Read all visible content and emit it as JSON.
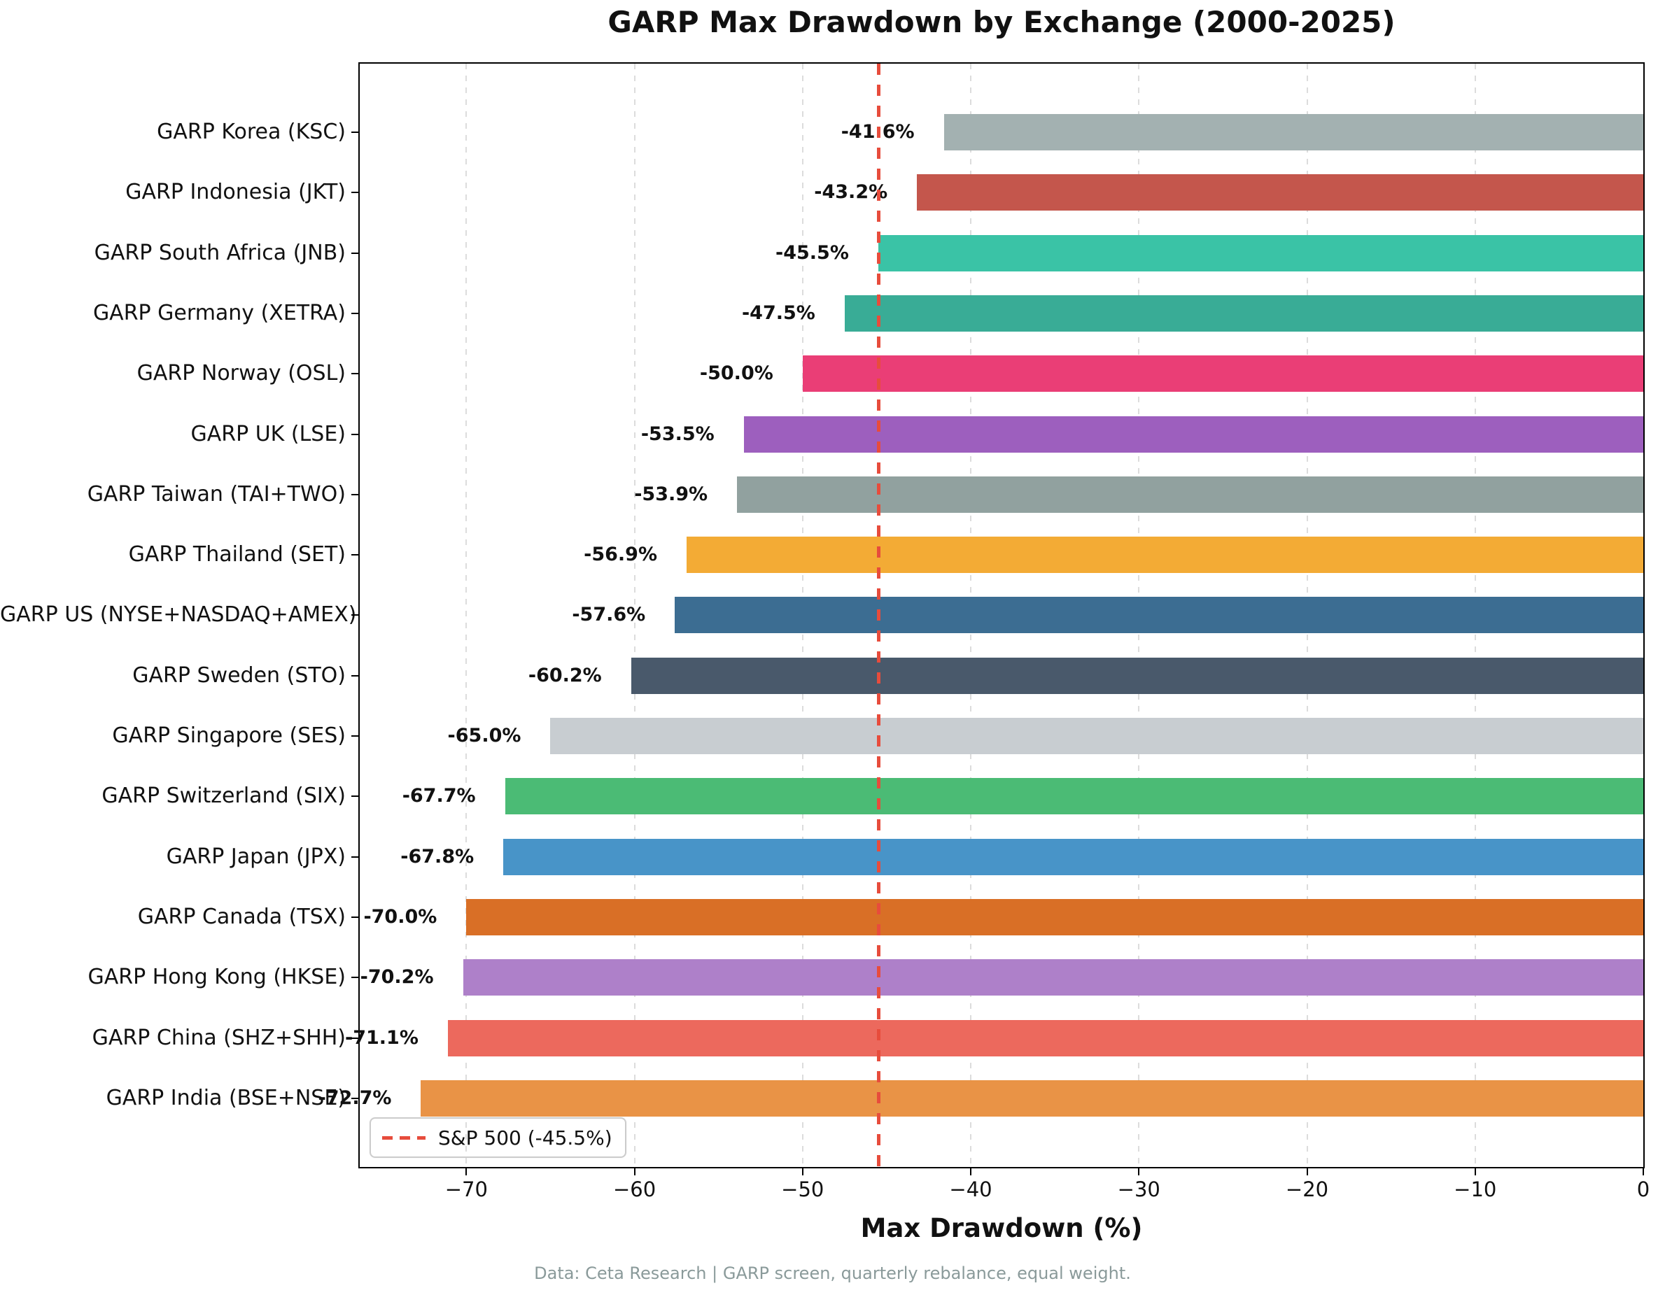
{
  "footer": {
    "text": "Data: Ceta Research | GARP screen, quarterly rebalance, equal weight."
  },
  "chart_data": {
    "type": "bar",
    "orientation": "horizontal",
    "title": "GARP Max Drawdown by Exchange (2000-2025)",
    "xlabel": "Max Drawdown (%)",
    "xlim": [
      -76.34,
      0
    ],
    "xticks": [
      -70,
      -60,
      -50,
      -40,
      -30,
      -20,
      -10,
      0
    ],
    "xtick_labels": [
      "−70",
      "−60",
      "−50",
      "−40",
      "−30",
      "−20",
      "−10",
      "0"
    ],
    "grid": "vertical-dashed",
    "gridline_color": "#dcdcdc",
    "legend_position": "lower-left",
    "reference_line": {
      "value": -45.5,
      "label": "S&P 500 (-45.5%)",
      "color": "#e74c3c",
      "style": "dashed"
    },
    "categories": [
      "GARP Korea (KSC)",
      "GARP Indonesia (JKT)",
      "GARP South Africa (JNB)",
      "GARP Germany (XETRA)",
      "GARP Norway (OSL)",
      "GARP UK (LSE)",
      "GARP Taiwan (TAI+TWO)",
      "GARP Thailand (SET)",
      "GARP US (NYSE+NASDAQ+AMEX)",
      "GARP Sweden (STO)",
      "GARP Singapore (SES)",
      "GARP Switzerland (SIX)",
      "GARP Japan (JPX)",
      "GARP Canada (TSX)",
      "GARP Hong Kong (HKSE)",
      "GARP China (SHZ+SHH)",
      "GARP India (BSE+NSE)"
    ],
    "values": [
      -41.6,
      -43.2,
      -45.5,
      -47.5,
      -50.0,
      -53.5,
      -53.9,
      -56.9,
      -57.6,
      -60.2,
      -65.0,
      -67.7,
      -67.8,
      -70.0,
      -70.2,
      -71.1,
      -72.7
    ],
    "value_labels": [
      "-41.6%",
      "-43.2%",
      "-45.5%",
      "-47.5%",
      "-50.0%",
      "-53.5%",
      "-53.9%",
      "-56.9%",
      "-57.6%",
      "-60.2%",
      "-65.0%",
      "-67.7%",
      "-67.8%",
      "-70.0%",
      "-70.2%",
      "-71.1%",
      "-72.7%"
    ],
    "bar_colors": [
      "#a3b1b1",
      "#c4564c",
      "#3ac3a6",
      "#39ac96",
      "#ea3e76",
      "#9d5fbe",
      "#91a19f",
      "#f3ab35",
      "#3c6d92",
      "#49596b",
      "#c8cdd1",
      "#4bbb75",
      "#4894c8",
      "#d96f26",
      "#ae80c9",
      "#ec695d",
      "#e99346"
    ]
  }
}
